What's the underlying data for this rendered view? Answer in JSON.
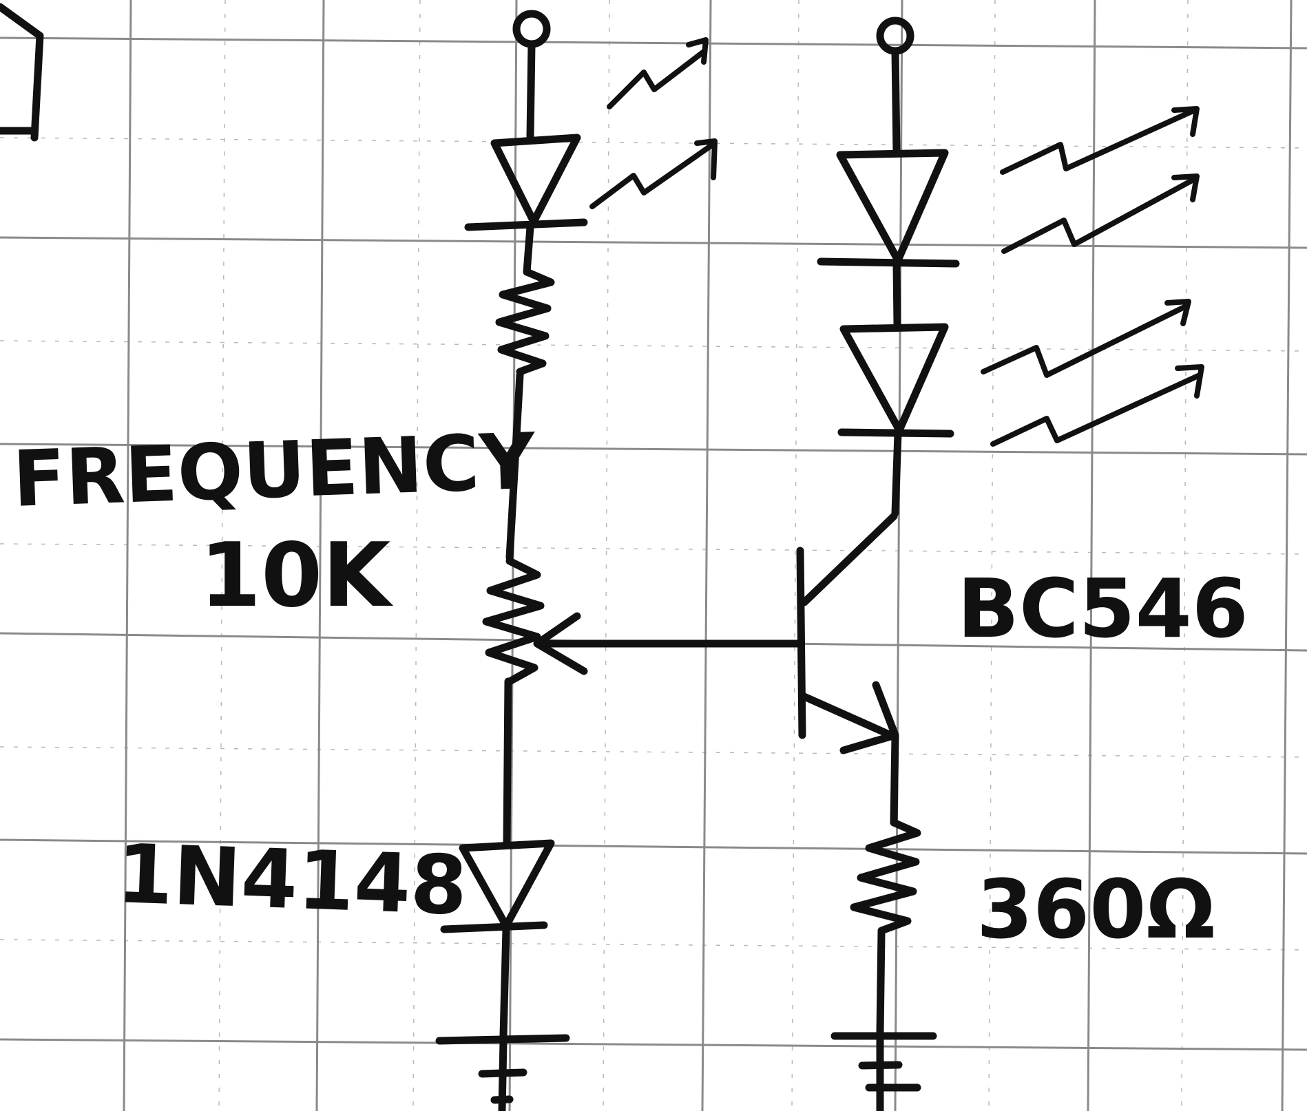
{
  "labels": {
    "control_name": "FREQUENCY",
    "potentiometer_value": "10K",
    "diode_part": "1N4148",
    "transistor_part": "BC546",
    "emitter_resistor_value": "360Ω"
  },
  "colors": {
    "ink": "#111111",
    "grid_major": "#8a8a8a",
    "grid_minor": "#b8b8b8",
    "paper": "#ffffff"
  }
}
